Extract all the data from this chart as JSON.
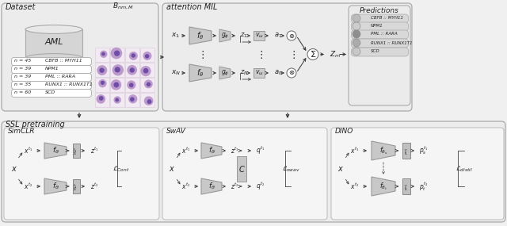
{
  "fig_width": 6.4,
  "fig_height": 2.85,
  "bg_color": "#f0f0f0",
  "outer_box_fc": "#ececec",
  "outer_box_ec": "#aaaaaa",
  "inner_box_fc": "#f5f5f5",
  "inner_box_ec": "#bbbbbb",
  "trap_fc": "#c8c8c8",
  "trap_ec": "#999999",
  "rect_fc": "#cccccc",
  "rect_ec": "#999999",
  "white": "#ffffff",
  "dataset_labels": [
    "CBFB :: MYH11",
    "NPM1",
    "PML :: RARA",
    "RUNX1 :: RUNX1T1",
    "SCD"
  ],
  "dataset_n": [
    "n = 45",
    "n = 39",
    "n = 39",
    "n = 35",
    "n = 60"
  ],
  "pred_colors": [
    "#bcbcbc",
    "#cccccc",
    "#8e8e8e",
    "#ababab",
    "#c8c8c8"
  ],
  "pred_labels": [
    "CBFB :: MYH11",
    "NPM1",
    "PML :: RARA",
    "RUNX1 :: RUNX1T1",
    "SCD"
  ]
}
